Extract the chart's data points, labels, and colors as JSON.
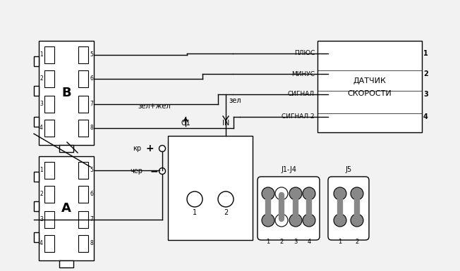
{
  "bg_color": "#f2f2f2",
  "line_color": "#000000",
  "gray_color": "#888888",
  "white": "#ffffff",
  "fig_width": 6.52,
  "fig_height": 3.85,
  "dpi": 100,
  "sensor_label": [
    "ДАТЧИК",
    "СКОРОСТИ"
  ],
  "sensor_pins": [
    {
      "num": "1",
      "label": "ПЛЮС"
    },
    {
      "num": "2",
      "label": "МИНУС"
    },
    {
      "num": "3",
      "label": "СИГНАЛ"
    },
    {
      "num": "4",
      "label": "СИГНАЛ 2"
    }
  ],
  "label_zel_zhel": "зел+жел",
  "label_zel": "зел",
  "label_IN": "IN",
  "label_O1": "O1",
  "label_kr": "кр",
  "label_cher": "чер",
  "label_plus": "+",
  "label_minus": "−",
  "label_J1J4": "J1-J4",
  "label_J5": "J5",
  "label_B": "B",
  "label_A": "A",
  "J1J4_pin_labels": [
    "1",
    "2",
    "3",
    "4"
  ],
  "J5_pin_labels": [
    "1",
    "2"
  ],
  "circle_labels": [
    "1",
    "2"
  ],
  "B_left_pins": [
    "1",
    "2",
    "3",
    "4"
  ],
  "B_right_pins": [
    "5",
    "6",
    "7",
    "8"
  ],
  "A_left_pins": [
    "1",
    "2",
    "3",
    "4"
  ],
  "A_right_pins": [
    "5",
    "6",
    "7",
    "8"
  ]
}
